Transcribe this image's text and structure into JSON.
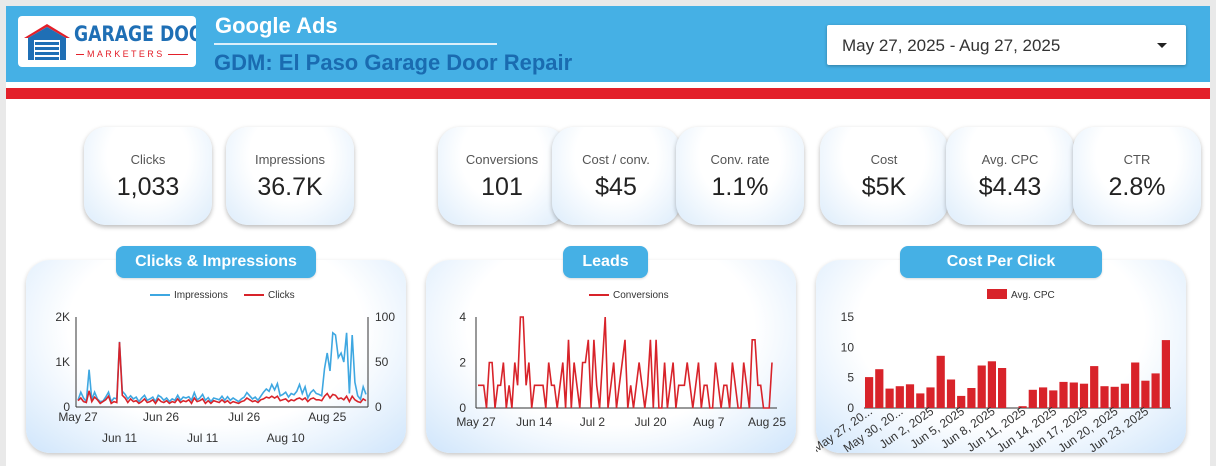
{
  "header": {
    "logo": {
      "word1": "GARAGE DOOR",
      "word2": "MARKETERS"
    },
    "title": "Google Ads",
    "subtitle": "GDM: El Paso Garage Door Repair",
    "date_range": "May 27, 2025 - Aug 27, 2025",
    "colors": {
      "bar": "#45b0e5",
      "accent": "#e3202a",
      "subtitle": "#1a6bb0"
    }
  },
  "kpis": [
    {
      "label": "Clicks",
      "value": "1,033"
    },
    {
      "label": "Impressions",
      "value": "36.7K"
    },
    {
      "label": "Conversions",
      "value": "101"
    },
    {
      "label": "Cost / conv.",
      "value": "$45"
    },
    {
      "label": "Conv. rate",
      "value": "1.1%"
    },
    {
      "label": "Cost",
      "value": "$5K"
    },
    {
      "label": "Avg. CPC",
      "value": "$4.43"
    },
    {
      "label": "CTR",
      "value": "2.8%"
    }
  ],
  "panels": [
    {
      "title": "Clicks & Impressions"
    },
    {
      "title": "Leads"
    },
    {
      "title": "Cost Per Click"
    }
  ],
  "chart_data": [
    {
      "type": "line",
      "title": "Clicks & Impressions",
      "x_ticks_top": [
        "May 27",
        "Jun 26",
        "Jul 26",
        "Aug 25"
      ],
      "x_ticks_bottom": [
        "Jun 11",
        "Jul 11",
        "Aug 10"
      ],
      "y_left_ticks": [
        "0",
        "1K",
        "2K"
      ],
      "y_right_ticks": [
        "0",
        "50",
        "100"
      ],
      "ylim_left": [
        0,
        2000
      ],
      "ylim_right": [
        0,
        100
      ],
      "legend_position": "top",
      "series": [
        {
          "name": "Impressions",
          "axis": "left",
          "color": "#3ea7e1",
          "values": [
            150,
            330,
            200,
            120,
            830,
            160,
            330,
            180,
            120,
            130,
            220,
            330,
            120,
            200,
            180,
            1450,
            350,
            280,
            180,
            250,
            180,
            220,
            120,
            200,
            260,
            150,
            180,
            220,
            120,
            260,
            220,
            150,
            200,
            120,
            180,
            150,
            260,
            150,
            220,
            200,
            230,
            150,
            320,
            160,
            200,
            280,
            150,
            210,
            120,
            200,
            180,
            160,
            240,
            150,
            230,
            150,
            200,
            160,
            120,
            180,
            220,
            320,
            250,
            180,
            220,
            150,
            240,
            330,
            400,
            350,
            500,
            380,
            520,
            250,
            280,
            330,
            220,
            300,
            270,
            350,
            500,
            300,
            450,
            200,
            320,
            380,
            300,
            280,
            250,
            850,
            1200,
            800,
            1650,
            1600,
            1100,
            1200,
            1000,
            1650,
            300,
            1600,
            550,
            250,
            170,
            450,
            280
          ]
        },
        {
          "name": "Clicks",
          "axis": "right",
          "color": "#d8232a",
          "values": [
            7,
            10,
            6,
            5,
            18,
            6,
            11,
            8,
            4,
            6,
            8,
            12,
            4,
            6,
            5,
            72,
            13,
            10,
            5,
            9,
            6,
            7,
            4,
            6,
            9,
            5,
            6,
            8,
            4,
            9,
            6,
            5,
            7,
            4,
            6,
            5,
            9,
            5,
            7,
            6,
            8,
            4,
            10,
            6,
            7,
            9,
            4,
            7,
            4,
            7,
            6,
            5,
            8,
            5,
            7,
            4,
            6,
            5,
            4,
            6,
            7,
            10,
            8,
            6,
            7,
            5,
            8,
            9,
            11,
            10,
            12,
            10,
            12,
            7,
            8,
            9,
            6,
            8,
            7,
            9,
            10,
            8,
            10,
            6,
            9,
            10,
            8,
            8,
            7,
            12,
            15,
            10,
            14,
            13,
            9,
            10,
            8,
            12,
            6,
            12,
            8,
            6,
            5,
            9,
            7
          ]
        }
      ]
    },
    {
      "type": "line",
      "title": "Leads",
      "x_ticks": [
        "May 27",
        "Jun 14",
        "Jul 2",
        "Jul 20",
        "Aug 7",
        "Aug 25"
      ],
      "y_ticks": [
        "0",
        "2",
        "4"
      ],
      "ylim": [
        0,
        4
      ],
      "legend_position": "top",
      "series": [
        {
          "name": "Conversions",
          "color": "#d8232a",
          "values": [
            1,
            1,
            1,
            0,
            2,
            2,
            0,
            1,
            1,
            2,
            0,
            1,
            0,
            2,
            1,
            4,
            4,
            1,
            2,
            0,
            1,
            1,
            1,
            1,
            0,
            2,
            1,
            1,
            0,
            1,
            2,
            0,
            3,
            0,
            2,
            1,
            0,
            2,
            2,
            3,
            0,
            3,
            1,
            0,
            2,
            4,
            0,
            1,
            2,
            0,
            1,
            2,
            3,
            0,
            1,
            0,
            1,
            2,
            1,
            0,
            1,
            3,
            0,
            3,
            0,
            0,
            2,
            0,
            1,
            2,
            0,
            1,
            1,
            1,
            2,
            1,
            0,
            1,
            2,
            0,
            1,
            1,
            0,
            0,
            2,
            1,
            0,
            1,
            1,
            0,
            2,
            1,
            0,
            0,
            2,
            1,
            0,
            3,
            3,
            1,
            1,
            0,
            0,
            0,
            2
          ]
        }
      ]
    },
    {
      "type": "bar",
      "title": "Cost Per Click",
      "categories": [
        "May 27, 2025",
        "",
        "May 30, 2025",
        "",
        "",
        "Jun 2, 2025",
        "",
        "",
        "Jun 5, 2025",
        "",
        "",
        "Jun 8, 2025",
        "",
        "",
        "Jun 11, 2025",
        "",
        "",
        "Jun 14, 2025",
        "",
        "",
        "Jun 17, 2025",
        "",
        "",
        "Jun 20, 2025",
        "",
        "",
        "Jun 23, 2025",
        "",
        "",
        ""
      ],
      "tick_labels": [
        "May 27, 20...",
        "May 30, 20...",
        "Jun 2, 2025",
        "Jun 5, 2025",
        "Jun 8, 2025",
        "Jun 11, 2025",
        "Jun 14, 2025",
        "Jun 17, 2025",
        "Jun 20, 2025",
        "Jun 23, 2025"
      ],
      "y_ticks": [
        "0",
        "5",
        "10",
        "15"
      ],
      "ylim": [
        0,
        15
      ],
      "legend_position": "top",
      "series": [
        {
          "name": "Avg. CPC",
          "color": "#d8232a",
          "values": [
            5.1,
            6.4,
            3.2,
            3.6,
            3.9,
            2.4,
            3.4,
            8.6,
            4.7,
            2.0,
            3.3,
            7.0,
            7.7,
            6.6,
            0,
            0.3,
            3.0,
            3.4,
            2.9,
            4.3,
            4.2,
            4.0,
            6.9,
            3.6,
            3.5,
            4.0,
            7.5,
            4.5,
            5.7,
            11.2
          ]
        }
      ]
    }
  ]
}
